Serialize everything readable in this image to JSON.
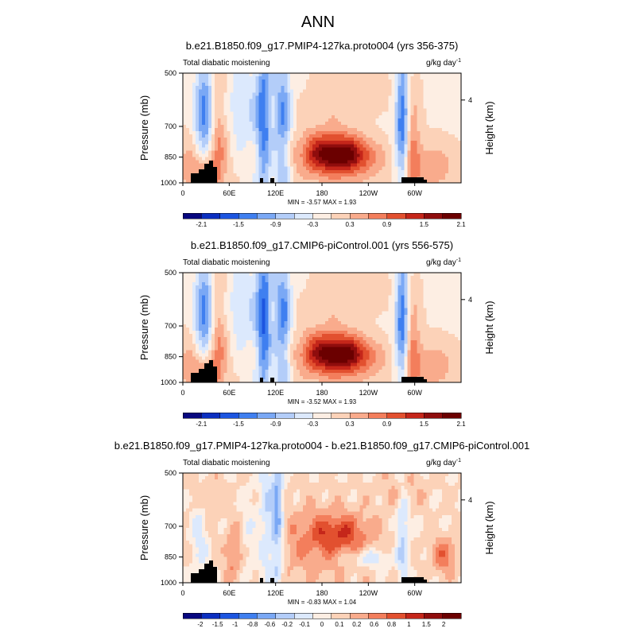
{
  "main_title": "ANN",
  "colors": {
    "palette": [
      "#08087f",
      "#0b2fc0",
      "#1c55e0",
      "#3f7ff0",
      "#7aa8f5",
      "#b3cdf9",
      "#dce9fd",
      "#fdeee3",
      "#fcd2b8",
      "#f9ab8c",
      "#f37e5c",
      "#e2502f",
      "#c5261a",
      "#8f0d0d",
      "#6b0000"
    ],
    "terrain": "#000000"
  },
  "chart_data": [
    {
      "type": "heatmap",
      "panel_id": "proto004",
      "title": "b.e21.B1850.f09_g17.PMIP4-127ka.proto004 (yrs 356-375)",
      "subtitle_left": "Total diabatic moistening",
      "units": "g/kg day",
      "units_sup": "-1",
      "ylabel": "Pressure (mb)",
      "ylabel_right": "Height (km)",
      "yticks": [
        "500",
        "700",
        "850",
        "1000"
      ],
      "yticks_right": [
        "4"
      ],
      "xticks": [
        "0",
        "60E",
        "120E",
        "180",
        "120W",
        "60W"
      ],
      "stats": "MIN = -3.57  MAX = 1.93",
      "colorbar_labels": [
        "-2.1",
        "-1.5",
        "-0.9",
        "-0.3",
        "0.3",
        "0.9",
        "1.5",
        "2.1"
      ],
      "pattern": "control"
    },
    {
      "type": "heatmap",
      "panel_id": "piControl",
      "title": "b.e21.B1850.f09_g17.CMIP6-piControl.001 (yrs 556-575)",
      "subtitle_left": "Total diabatic moistening",
      "units": "g/kg day",
      "units_sup": "-1",
      "ylabel": "Pressure (mb)",
      "ylabel_right": "Height (km)",
      "yticks": [
        "500",
        "700",
        "850",
        "1000"
      ],
      "yticks_right": [
        "4"
      ],
      "xticks": [
        "0",
        "60E",
        "120E",
        "180",
        "120W",
        "60W"
      ],
      "stats": "MIN = -3.52  MAX = 1.93",
      "colorbar_labels": [
        "-2.1",
        "-1.5",
        "-0.9",
        "-0.3",
        "0.3",
        "0.9",
        "1.5",
        "2.1"
      ],
      "pattern": "control2"
    },
    {
      "type": "heatmap",
      "panel_id": "difference",
      "title": "b.e21.B1850.f09_g17.PMIP4-127ka.proto004 - b.e21.B1850.f09_g17.CMIP6-piControl.001",
      "subtitle_left": "Total diabatic moistening",
      "units": "g/kg day",
      "units_sup": "-1",
      "ylabel": "Pressure (mb)",
      "ylabel_right": "Height (km)",
      "yticks": [
        "500",
        "700",
        "850",
        "1000"
      ],
      "yticks_right": [
        "4"
      ],
      "xticks": [
        "0",
        "60E",
        "120E",
        "180",
        "120W",
        "60W"
      ],
      "stats": "MIN = -0.83  MAX = 1.04",
      "colorbar_labels": [
        "-2",
        "-1.5",
        "-1",
        "-0.8",
        "-0.6",
        "-0.2",
        "-0.1",
        "0",
        "0.1",
        "0.2",
        "0.6",
        "0.8",
        "1",
        "1.5",
        "2"
      ],
      "pattern": "diff"
    }
  ]
}
